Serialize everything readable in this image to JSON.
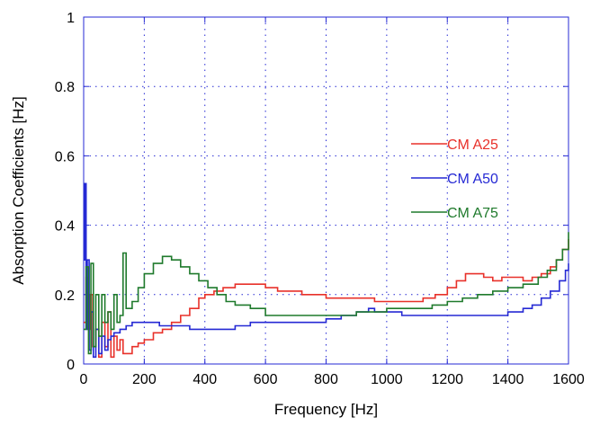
{
  "chart_data": {
    "type": "line",
    "title": "",
    "xlabel": "Frequency [Hz]",
    "ylabel": "Absorption Coefficients [Hz]",
    "xlim": [
      0,
      1600
    ],
    "ylim": [
      0,
      1
    ],
    "xticks": [
      0,
      200,
      400,
      600,
      800,
      1000,
      1200,
      1400,
      1600
    ],
    "yticks": [
      0,
      0.2,
      0.4,
      0.6,
      0.8,
      1
    ],
    "xtick_labels": [
      "0",
      "200",
      "400",
      "600",
      "800",
      "1000",
      "1200",
      "1400",
      "1600"
    ],
    "ytick_labels": [
      "0",
      "0.2",
      "0.4",
      "0.6",
      "0.8",
      "1"
    ],
    "grid": true,
    "legend_position": "center-right",
    "series": [
      {
        "name": "CM A25",
        "color": "#e8312a",
        "x": [
          0,
          8,
          15,
          22,
          30,
          40,
          50,
          60,
          70,
          80,
          90,
          100,
          110,
          120,
          130,
          140,
          160,
          180,
          200,
          230,
          260,
          290,
          320,
          350,
          380,
          400,
          430,
          460,
          500,
          540,
          580,
          600,
          640,
          680,
          720,
          760,
          800,
          840,
          880,
          920,
          960,
          1000,
          1040,
          1080,
          1120,
          1160,
          1200,
          1230,
          1260,
          1290,
          1320,
          1350,
          1380,
          1400,
          1420,
          1450,
          1480,
          1510,
          1540,
          1560,
          1580,
          1600
        ],
        "y": [
          0.12,
          0.25,
          0.1,
          0.2,
          0.05,
          0.1,
          0.02,
          0.12,
          0.05,
          0.15,
          0.02,
          0.08,
          0.04,
          0.07,
          0.03,
          0.03,
          0.05,
          0.06,
          0.07,
          0.09,
          0.1,
          0.12,
          0.14,
          0.16,
          0.19,
          0.2,
          0.21,
          0.22,
          0.23,
          0.23,
          0.23,
          0.22,
          0.21,
          0.21,
          0.2,
          0.2,
          0.19,
          0.19,
          0.19,
          0.19,
          0.18,
          0.18,
          0.18,
          0.18,
          0.19,
          0.2,
          0.22,
          0.24,
          0.26,
          0.26,
          0.25,
          0.24,
          0.25,
          0.25,
          0.25,
          0.24,
          0.25,
          0.26,
          0.28,
          0.3,
          0.33,
          0.36
        ]
      },
      {
        "name": "CM A50",
        "color": "#2529d4",
        "x": [
          0,
          4,
          8,
          12,
          18,
          25,
          32,
          40,
          50,
          60,
          70,
          80,
          90,
          100,
          120,
          140,
          160,
          200,
          250,
          300,
          350,
          400,
          450,
          500,
          550,
          600,
          650,
          700,
          750,
          800,
          850,
          900,
          940,
          960,
          1000,
          1050,
          1100,
          1150,
          1200,
          1250,
          1300,
          1350,
          1400,
          1450,
          1480,
          1510,
          1540,
          1570,
          1590,
          1600
        ],
        "y": [
          0.3,
          0.52,
          0.1,
          0.3,
          0.04,
          0.15,
          0.02,
          0.1,
          0.03,
          0.08,
          0.04,
          0.07,
          0.08,
          0.09,
          0.1,
          0.11,
          0.12,
          0.12,
          0.11,
          0.11,
          0.1,
          0.1,
          0.1,
          0.11,
          0.12,
          0.12,
          0.12,
          0.12,
          0.12,
          0.13,
          0.14,
          0.15,
          0.16,
          0.15,
          0.15,
          0.14,
          0.14,
          0.14,
          0.14,
          0.14,
          0.14,
          0.14,
          0.15,
          0.16,
          0.17,
          0.19,
          0.21,
          0.24,
          0.27,
          0.29
        ]
      },
      {
        "name": "CM A75",
        "color": "#1f7a2c",
        "x": [
          0,
          8,
          16,
          24,
          32,
          40,
          50,
          60,
          70,
          80,
          90,
          100,
          110,
          120,
          130,
          140,
          160,
          180,
          200,
          230,
          260,
          290,
          320,
          350,
          380,
          410,
          440,
          470,
          500,
          550,
          600,
          650,
          700,
          750,
          800,
          850,
          900,
          950,
          1000,
          1050,
          1100,
          1150,
          1200,
          1250,
          1300,
          1350,
          1400,
          1450,
          1500,
          1530,
          1560,
          1580,
          1600
        ],
        "y": [
          0.1,
          0.28,
          0.03,
          0.29,
          0.05,
          0.2,
          0.08,
          0.2,
          0.12,
          0.15,
          0.1,
          0.2,
          0.12,
          0.14,
          0.32,
          0.16,
          0.18,
          0.22,
          0.26,
          0.29,
          0.31,
          0.3,
          0.28,
          0.26,
          0.24,
          0.22,
          0.2,
          0.18,
          0.17,
          0.16,
          0.14,
          0.14,
          0.14,
          0.14,
          0.14,
          0.14,
          0.15,
          0.15,
          0.16,
          0.16,
          0.16,
          0.17,
          0.18,
          0.19,
          0.2,
          0.21,
          0.22,
          0.23,
          0.25,
          0.27,
          0.3,
          0.33,
          0.38
        ]
      }
    ]
  }
}
